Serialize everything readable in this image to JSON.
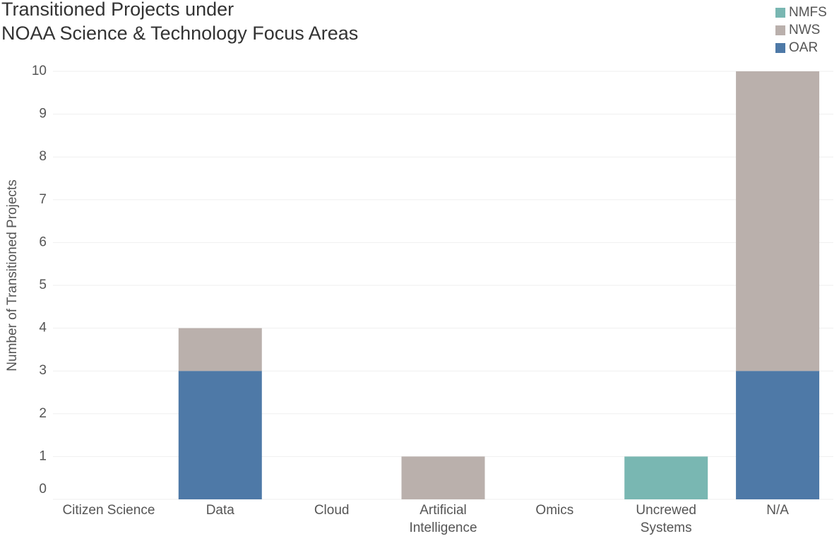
{
  "chart_data": {
    "type": "stacked-bar",
    "title": [
      "Transitioned Projects under",
      "NOAA Science & Technology Focus Areas"
    ],
    "y_label": "Number of Transitioned Projects",
    "categories": [
      "Citizen Science",
      "Data",
      "Cloud",
      "Artificial Intelligence",
      "Omics",
      "Uncrewed Systems",
      "N/A"
    ],
    "series": [
      {
        "name": "NMFS",
        "color": "#79b7b2",
        "values": [
          0,
          0,
          0,
          0,
          0,
          1,
          0
        ]
      },
      {
        "name": "NWS",
        "color": "#bab0ac",
        "values": [
          0,
          1,
          0,
          1,
          0,
          0,
          7
        ]
      },
      {
        "name": "OAR",
        "color": "#4e79a7",
        "values": [
          0,
          3,
          0,
          0,
          0,
          0,
          3
        ]
      }
    ],
    "ylim": [
      0,
      10
    ],
    "yticks": [
      0,
      1,
      2,
      3,
      4,
      5,
      6,
      7,
      8,
      9,
      10
    ],
    "grid": true,
    "legend": "top-right"
  }
}
